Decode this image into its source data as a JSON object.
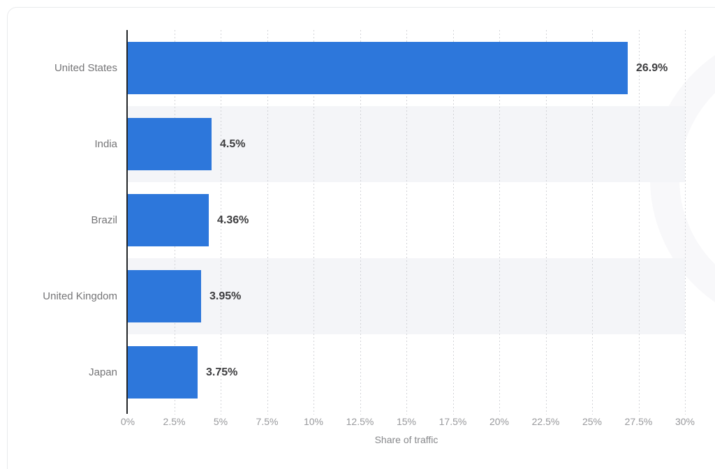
{
  "chart_data": {
    "type": "bar",
    "orientation": "horizontal",
    "title": "",
    "categories": [
      "United States",
      "India",
      "Brazil",
      "United Kingdom",
      "Japan"
    ],
    "values": [
      26.9,
      4.5,
      4.36,
      3.95,
      3.75
    ],
    "value_labels": [
      "26.9%",
      "4.5%",
      "4.36%",
      "3.95%",
      "3.75%"
    ],
    "xlabel": "Share of traffic",
    "ylabel": "",
    "xlim": [
      0,
      30
    ],
    "x_ticks": [
      {
        "value": 0,
        "label": "0%"
      },
      {
        "value": 2.5,
        "label": "2.5%"
      },
      {
        "value": 5,
        "label": "5%"
      },
      {
        "value": 7.5,
        "label": "7.5%"
      },
      {
        "value": 10,
        "label": "10%"
      },
      {
        "value": 12.5,
        "label": "12.5%"
      },
      {
        "value": 15,
        "label": "15%"
      },
      {
        "value": 17.5,
        "label": "17.5%"
      },
      {
        "value": 20,
        "label": "20%"
      },
      {
        "value": 22.5,
        "label": "22.5%"
      },
      {
        "value": 25,
        "label": "25%"
      },
      {
        "value": 27.5,
        "label": "27.5%"
      },
      {
        "value": 30,
        "label": "30%"
      }
    ],
    "grid": "vertical dotted gridlines at every tick except 0%",
    "legend": "none",
    "row_striping": "alternate rows shaded (2nd and 4th)",
    "colors": {
      "bar": "#2d77db",
      "row_stripe": "#f4f5f8",
      "gridline": "#d2d3d7",
      "axis_line": "#232528",
      "category_label": "#757577",
      "value_label": "#3d3d3f",
      "tick_label": "#98999c",
      "axis_title": "#87888b",
      "card_border": "#e9eaec",
      "background": "#ffffff"
    }
  }
}
